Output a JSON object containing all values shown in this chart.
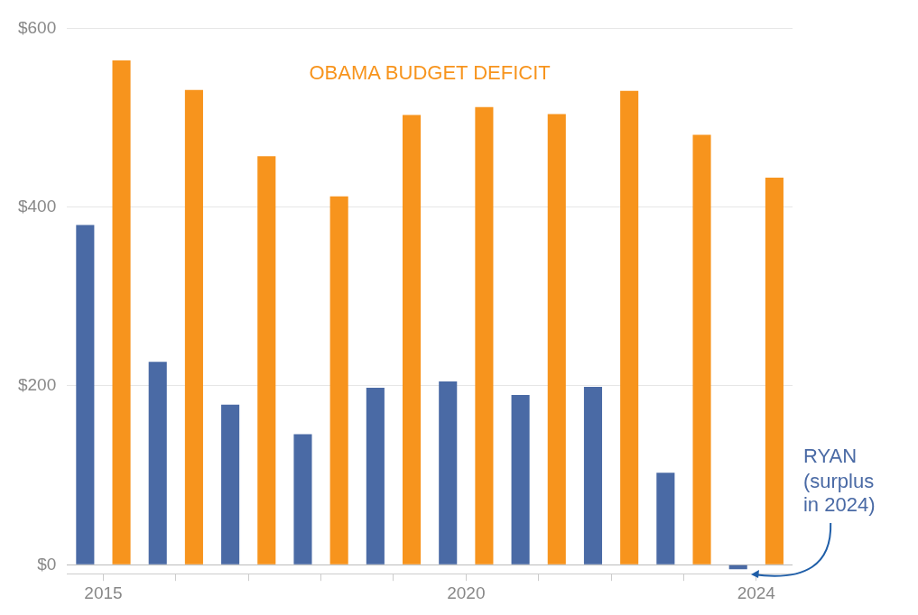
{
  "chart_data": {
    "type": "bar",
    "categories": [
      "2015",
      null,
      null,
      null,
      null,
      "2020",
      null,
      null,
      null,
      "2024"
    ],
    "series": [
      {
        "name": "RYAN",
        "color": "#4a6aa5",
        "values": [
          380,
          227,
          179,
          146,
          198,
          205,
          190,
          199,
          103,
          -5
        ]
      },
      {
        "name": "OBAMA BUDGET DEFICIT",
        "color": "#f7941d",
        "values": [
          564,
          531,
          457,
          412,
          503,
          512,
          504,
          530,
          481,
          433
        ]
      }
    ],
    "ylim": [
      -10,
      600
    ],
    "yticks": [
      {
        "value": 0,
        "label": "$0"
      },
      {
        "value": 200,
        "label": "$200"
      },
      {
        "value": 400,
        "label": "$400"
      },
      {
        "value": 600,
        "label": "$600"
      }
    ],
    "grid": "y",
    "legend": false,
    "annotations": [
      "(surplus in 2024)"
    ]
  }
}
